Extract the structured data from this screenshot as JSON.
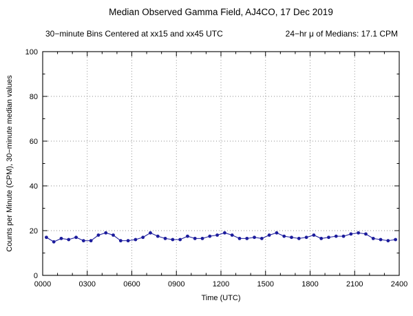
{
  "header": {
    "title": "Median Observed Gamma Field, AJ4CO, 17 Dec 2019",
    "subtitle_left": "30−minute Bins Centered at xx15 and xx45 UTC",
    "subtitle_right": "24−hr μ of Medians: 17.1 CPM"
  },
  "chart_data": {
    "type": "line",
    "title": "Median Observed Gamma Field, AJ4CO, 17 Dec 2019",
    "xlabel": "Time (UTC)",
    "ylabel": "Counts per Minute (CPM), 30−minute median values",
    "xlim": [
      0,
      24
    ],
    "ylim": [
      0,
      100
    ],
    "grid": "dotted",
    "legend": "none",
    "line_color": "#1c1c9c",
    "marker": "filled-circle",
    "x_ticks": [
      {
        "value": 0,
        "label": "0000"
      },
      {
        "value": 3,
        "label": "0300"
      },
      {
        "value": 6,
        "label": "0600"
      },
      {
        "value": 9,
        "label": "0900"
      },
      {
        "value": 12,
        "label": "1200"
      },
      {
        "value": 15,
        "label": "1500"
      },
      {
        "value": 18,
        "label": "1800"
      },
      {
        "value": 21,
        "label": "2100"
      },
      {
        "value": 24,
        "label": "2400"
      }
    ],
    "y_ticks": [
      {
        "value": 0,
        "label": "0"
      },
      {
        "value": 20,
        "label": "20"
      },
      {
        "value": 40,
        "label": "40"
      },
      {
        "value": 60,
        "label": "60"
      },
      {
        "value": 80,
        "label": "80"
      },
      {
        "value": 100,
        "label": "100"
      }
    ],
    "x_minor_step_hours": 1,
    "y_minor_step": 10,
    "bin_center_hours": [
      0.25,
      0.75,
      1.25,
      1.75,
      2.25,
      2.75,
      3.25,
      3.75,
      4.25,
      4.75,
      5.25,
      5.75,
      6.25,
      6.75,
      7.25,
      7.75,
      8.25,
      8.75,
      9.25,
      9.75,
      10.25,
      10.75,
      11.25,
      11.75,
      12.25,
      12.75,
      13.25,
      13.75,
      14.25,
      14.75,
      15.25,
      15.75,
      16.25,
      16.75,
      17.25,
      17.75,
      18.25,
      18.75,
      19.25,
      19.75,
      20.25,
      20.75,
      21.25,
      21.75,
      22.25,
      22.75,
      23.25,
      23.75
    ],
    "values": [
      17.0,
      15.0,
      16.5,
      16.0,
      17.0,
      15.5,
      15.5,
      18.0,
      19.0,
      18.0,
      15.5,
      15.5,
      16.0,
      17.0,
      19.0,
      17.5,
      16.5,
      16.0,
      16.0,
      17.5,
      16.5,
      16.5,
      17.5,
      18.0,
      19.0,
      18.0,
      16.5,
      16.5,
      17.0,
      16.5,
      18.0,
      19.0,
      17.5,
      17.0,
      16.5,
      17.0,
      18.0,
      16.5,
      17.0,
      17.5,
      17.5,
      18.5,
      19.0,
      18.5,
      16.5,
      16.0,
      15.5,
      16.0
    ],
    "mean_of_medians_cpm": 17.1
  }
}
